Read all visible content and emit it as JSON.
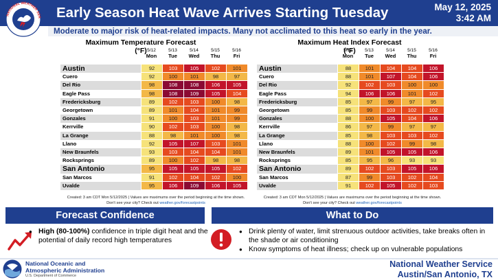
{
  "header": {
    "title": "Early Season Heat Wave Arrives Starting Tuesday",
    "date": "May 12, 2025",
    "time": "3:42 AM",
    "logo_text": "NATIONAL WEATHER SERVICE"
  },
  "subtitle": "Moderate to major risk of heat-related impacts. Many not acclimated to this heat so early in the year.",
  "days": [
    {
      "date": "5/12",
      "name": "Mon"
    },
    {
      "date": "5/13",
      "name": "Tue"
    },
    {
      "date": "5/14",
      "name": "Wed"
    },
    {
      "date": "5/15",
      "name": "Thu"
    },
    {
      "date": "5/16",
      "name": "Fri"
    }
  ],
  "cities": [
    "Austin",
    "Cuero",
    "Del Rio",
    "Eagle Pass",
    "Fredericksburg",
    "Georgetown",
    "Gonzales",
    "Kerrville",
    "La Grange",
    "Llano",
    "New Braunfels",
    "Rocksprings",
    "San Antonio",
    "San Marcos",
    "Uvalde"
  ],
  "big_cities": [
    "Austin",
    "San Antonio"
  ],
  "max_temp": {
    "title": "Maximum Temperature Forecast (°F)",
    "rows": [
      [
        92,
        103,
        105,
        102,
        101
      ],
      [
        92,
        100,
        101,
        98,
        97
      ],
      [
        98,
        108,
        108,
        106,
        105
      ],
      [
        98,
        108,
        109,
        105,
        104
      ],
      [
        89,
        102,
        103,
        100,
        98
      ],
      [
        89,
        101,
        104,
        101,
        99
      ],
      [
        91,
        100,
        103,
        101,
        99
      ],
      [
        90,
        102,
        103,
        100,
        98
      ],
      [
        88,
        98,
        101,
        100,
        98
      ],
      [
        92,
        105,
        107,
        103,
        101
      ],
      [
        93,
        103,
        104,
        104,
        101
      ],
      [
        89,
        100,
        102,
        98,
        98
      ],
      [
        95,
        105,
        105,
        105,
        102
      ],
      [
        91,
        102,
        104,
        102,
        100
      ],
      [
        95,
        106,
        109,
        106,
        105
      ]
    ],
    "footnote": "Created: 3 am CDT Mon 5/12/2025  |  Values are maximums over the period beginning at the time shown.",
    "footnote2": "Don't see your city? Check out ",
    "footnote_link": "weather.gov/forecastpoints"
  },
  "heat_index": {
    "title": "Maximum Heat Index Forecast (°F)",
    "rows": [
      [
        88,
        101,
        104,
        104,
        106
      ],
      [
        88,
        101,
        107,
        104,
        106
      ],
      [
        92,
        102,
        103,
        100,
        100
      ],
      [
        94,
        106,
        106,
        101,
        102
      ],
      [
        85,
        97,
        99,
        97,
        95
      ],
      [
        85,
        99,
        103,
        102,
        102
      ],
      [
        88,
        100,
        105,
        104,
        106
      ],
      [
        86,
        97,
        99,
        97,
        97
      ],
      [
        85,
        98,
        103,
        103,
        102
      ],
      [
        88,
        100,
        102,
        99,
        98
      ],
      [
        89,
        101,
        105,
        105,
        106
      ],
      [
        85,
        95,
        96,
        93,
        93
      ],
      [
        89,
        102,
        103,
        105,
        106
      ],
      [
        87,
        99,
        103,
        102,
        104
      ],
      [
        91,
        102,
        105,
        102,
        103
      ]
    ],
    "footnote": "Created: 3 am CDT Mon 5/12/2025  |  Values are maximums over the period beginning at the time shown.",
    "footnote2": "Don't see your city? Check out ",
    "footnote_link": "weather.gov/forecastpoints"
  },
  "color_scale": {
    "base": "#f6e27a",
    "t95": "#f3b847",
    "t99": "#f08a2a",
    "t102": "#e64a1f",
    "t105": "#c2142a",
    "t108": "#8b0a33"
  },
  "forecast_confidence": {
    "heading": "Forecast Confidence",
    "bold": "High (80-100%)",
    "text": " confidence in triple digit heat and the potential of daily record high temperatures",
    "icon": "trend-up-icon"
  },
  "what_to_do": {
    "heading": "What to Do",
    "items": [
      "Drink plenty of water, limit strenuous outdoor activities, take breaks often in the shade or air conditioning",
      "Know symptoms of heat illness; check up on vulnerable populations"
    ],
    "icon": "alert-icon"
  },
  "footer": {
    "noaa_line1": "National Oceanic and",
    "noaa_line2": "Atmospheric Administration",
    "noaa_dept": "U.S. Department of Commerce",
    "nws_line1": "National Weather Service",
    "nws_line2": "Austin/San Antonio, TX"
  },
  "colors": {
    "brand_blue": "#1f3f8f",
    "alert_red": "#d31d24",
    "arrow_red": "#d31d24"
  }
}
